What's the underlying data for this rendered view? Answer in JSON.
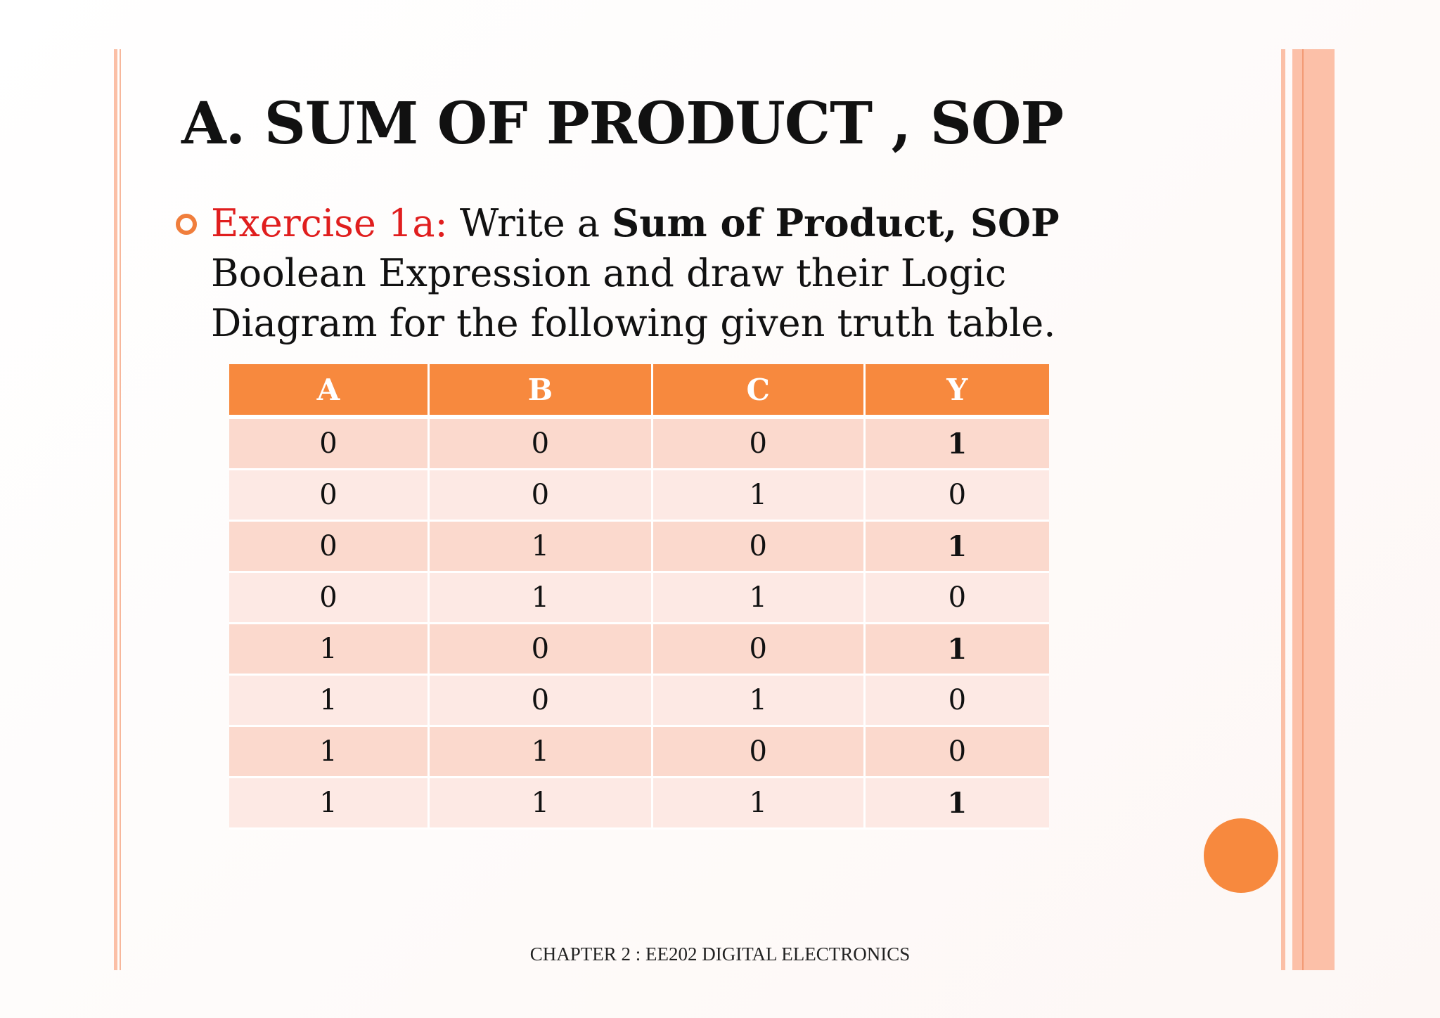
{
  "slide": {
    "title": "A. SUM OF PRODUCT , SOP",
    "exercise": {
      "label": "Exercise 1a:",
      "text_before_bold": " Write a ",
      "bold_text": "Sum of Product, SOP",
      "text_after_bold": " Boolean Expression and draw their Logic Diagram for the following given truth table."
    },
    "truth_table": {
      "headers": [
        "A",
        "B",
        "C",
        "Y"
      ],
      "rows": [
        [
          "0",
          "0",
          "0",
          "1"
        ],
        [
          "0",
          "0",
          "1",
          "0"
        ],
        [
          "0",
          "1",
          "0",
          "1"
        ],
        [
          "0",
          "1",
          "1",
          "0"
        ],
        [
          "1",
          "0",
          "0",
          "1"
        ],
        [
          "1",
          "0",
          "1",
          "0"
        ],
        [
          "1",
          "1",
          "0",
          "0"
        ],
        [
          "1",
          "1",
          "1",
          "1"
        ]
      ]
    },
    "footer": "CHAPTER 2 : EE202 DIGITAL ELECTRONICS"
  },
  "colors": {
    "accent_orange": "#f7893e",
    "border_peach": "#fbbfa6",
    "exercise_red": "#e01e1e",
    "row_dark": "#fbd9cd",
    "row_light": "#fde9e4"
  }
}
